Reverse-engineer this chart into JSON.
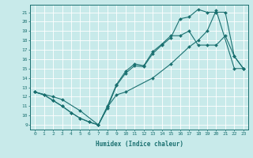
{
  "xlabel": "Humidex (Indice chaleur)",
  "bg_color": "#c8eaea",
  "grid_color": "#ffffff",
  "line_color": "#1a7070",
  "xlim": [
    -0.5,
    23.5
  ],
  "ylim": [
    8.5,
    21.8
  ],
  "yticks": [
    9,
    10,
    11,
    12,
    13,
    14,
    15,
    16,
    17,
    18,
    19,
    20,
    21
  ],
  "xticks": [
    0,
    1,
    2,
    3,
    4,
    5,
    6,
    7,
    8,
    9,
    10,
    11,
    12,
    13,
    14,
    15,
    16,
    17,
    18,
    19,
    20,
    21,
    22,
    23
  ],
  "line1_x": [
    0,
    1,
    2,
    3,
    4,
    5,
    6,
    7,
    8,
    9,
    10,
    11,
    12,
    13,
    14,
    15,
    16,
    17,
    18,
    19,
    20,
    21,
    22,
    23
  ],
  "line1_y": [
    12.5,
    12.2,
    11.6,
    11.0,
    10.3,
    9.7,
    9.3,
    9.0,
    10.8,
    13.2,
    14.5,
    15.3,
    15.2,
    16.6,
    17.5,
    18.3,
    20.3,
    20.5,
    21.3,
    21.0,
    21.0,
    21.0,
    16.3,
    15.0
  ],
  "line2_x": [
    0,
    1,
    2,
    3,
    4,
    5,
    6,
    7,
    8,
    9,
    10,
    11,
    12,
    13,
    14,
    15,
    16,
    17,
    18,
    19,
    20,
    21,
    22,
    23
  ],
  "line2_y": [
    12.5,
    12.2,
    11.6,
    11.0,
    10.3,
    9.7,
    9.3,
    9.0,
    11.0,
    13.3,
    14.7,
    15.5,
    15.3,
    16.8,
    17.6,
    18.5,
    18.5,
    19.0,
    17.5,
    17.5,
    17.5,
    18.5,
    16.3,
    15.0
  ],
  "line3_x": [
    0,
    2,
    3,
    5,
    7,
    8,
    9,
    10,
    13,
    15,
    17,
    18,
    19,
    20,
    22,
    23
  ],
  "line3_y": [
    12.5,
    12.0,
    11.7,
    10.5,
    9.0,
    10.9,
    12.2,
    12.5,
    14.0,
    15.5,
    17.3,
    18.0,
    19.0,
    21.2,
    15.0,
    15.0
  ]
}
